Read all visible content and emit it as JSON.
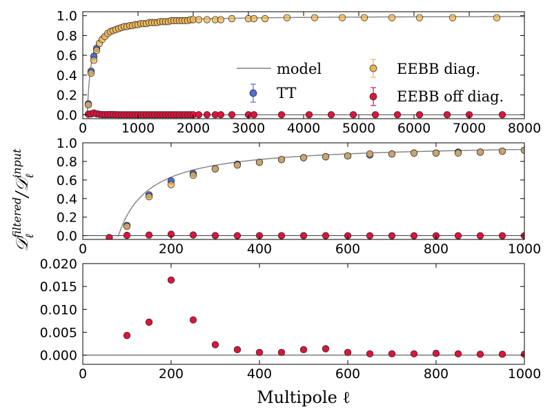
{
  "chart_data": {
    "type": "scatter",
    "xlabel": "Multipole ℓ",
    "ylabel": "Dℓ filtered / Dℓ input",
    "ylabel_main": "𝒟",
    "ylabel_sub": "ℓ",
    "ylabel_sup_num": "filtered",
    "ylabel_sup_den": "input",
    "ylabel_slash": "/",
    "colors": {
      "TT": "#4d6fd1",
      "EEBB_diag": "#f0b550",
      "EEBB_off": "#dc143c",
      "model": "#808080"
    },
    "legend": {
      "model": "model",
      "TT": "TT",
      "EEBB_diag": "EEBB diag.",
      "EEBB_off": "EEBB off diag.",
      "location": "center-right"
    },
    "panels": [
      {
        "name": "top",
        "xlim": [
          0,
          8000
        ],
        "ylim": [
          -0.04,
          1.04
        ],
        "xticks": [
          "0",
          "1000",
          "2000",
          "3000",
          "4000",
          "5000",
          "6000",
          "7000",
          "8000"
        ],
        "yticks": [
          "0.0",
          "0.2",
          "0.4",
          "0.6",
          "0.8",
          "1.0"
        ],
        "xtick_values": [
          0,
          1000,
          2000,
          3000,
          4000,
          5000,
          6000,
          7000,
          8000
        ],
        "ytick_values": [
          0,
          0.2,
          0.4,
          0.6,
          0.8,
          1.0
        ],
        "model": {
          "l0": 80,
          "a": 70,
          "xmax": 8000
        },
        "ref_line": 0,
        "TT": [
          [
            100,
            0.11
          ],
          [
            150,
            0.44
          ],
          [
            200,
            0.59
          ],
          [
            250,
            0.67
          ]
        ],
        "EEBB_diag": [
          [
            100,
            0.1
          ],
          [
            150,
            0.42
          ],
          [
            200,
            0.55
          ],
          [
            250,
            0.65
          ],
          [
            300,
            0.72
          ],
          [
            350,
            0.76
          ],
          [
            400,
            0.79
          ],
          [
            450,
            0.82
          ],
          [
            500,
            0.84
          ],
          [
            550,
            0.85
          ],
          [
            600,
            0.86
          ],
          [
            650,
            0.87
          ],
          [
            700,
            0.88
          ],
          [
            750,
            0.89
          ],
          [
            800,
            0.89
          ],
          [
            850,
            0.9
          ],
          [
            900,
            0.9
          ],
          [
            950,
            0.91
          ],
          [
            1000,
            0.91
          ],
          [
            1050,
            0.92
          ],
          [
            1100,
            0.92
          ],
          [
            1150,
            0.92
          ],
          [
            1200,
            0.93
          ],
          [
            1250,
            0.93
          ],
          [
            1300,
            0.93
          ],
          [
            1350,
            0.93
          ],
          [
            1400,
            0.94
          ],
          [
            1450,
            0.94
          ],
          [
            1500,
            0.94
          ],
          [
            1550,
            0.94
          ],
          [
            1600,
            0.95
          ],
          [
            1650,
            0.95
          ],
          [
            1700,
            0.95
          ],
          [
            1750,
            0.95
          ],
          [
            1800,
            0.95
          ],
          [
            1850,
            0.95
          ],
          [
            1900,
            0.95
          ],
          [
            1950,
            0.96
          ],
          [
            2000,
            0.96
          ],
          [
            2100,
            0.96
          ],
          [
            2250,
            0.96
          ],
          [
            2400,
            0.96
          ],
          [
            2500,
            0.96
          ],
          [
            2700,
            0.97
          ],
          [
            3000,
            0.97
          ],
          [
            3100,
            0.97
          ],
          [
            3300,
            0.97
          ],
          [
            3700,
            0.98
          ],
          [
            4200,
            0.98
          ],
          [
            4700,
            0.98
          ],
          [
            5100,
            0.98
          ],
          [
            5600,
            0.98
          ],
          [
            6100,
            0.98
          ],
          [
            6700,
            0.98
          ],
          [
            7500,
            0.98
          ]
        ],
        "EEBB_off": [
          [
            100,
            0.005
          ],
          [
            150,
            0.008
          ],
          [
            200,
            0.017
          ],
          [
            250,
            0.009
          ],
          [
            300,
            0.004
          ],
          [
            350,
            0.002
          ],
          [
            400,
            0.001
          ],
          [
            450,
            0.002
          ],
          [
            500,
            0.002
          ],
          [
            550,
            0.002
          ],
          [
            600,
            0.001
          ],
          [
            650,
            0.0
          ],
          [
            700,
            0.0
          ],
          [
            750,
            0.0
          ],
          [
            800,
            0.0
          ],
          [
            850,
            0.0
          ],
          [
            900,
            0.0
          ],
          [
            950,
            0.0
          ],
          [
            1000,
            0.0
          ],
          [
            1050,
            0.0
          ],
          [
            1100,
            0.0
          ],
          [
            1150,
            0.0
          ],
          [
            1200,
            0.0
          ],
          [
            1250,
            0.0
          ],
          [
            1300,
            0.0
          ],
          [
            1350,
            0.0
          ],
          [
            1400,
            0.0
          ],
          [
            1450,
            0.0
          ],
          [
            1500,
            0.0
          ],
          [
            1550,
            0.0
          ],
          [
            1600,
            0.0
          ],
          [
            1650,
            0.0
          ],
          [
            1700,
            0.0
          ],
          [
            1750,
            0.0
          ],
          [
            1800,
            0.0
          ],
          [
            1850,
            0.0
          ],
          [
            1900,
            0.0
          ],
          [
            1950,
            0.0
          ],
          [
            2000,
            0.0
          ],
          [
            2100,
            0.0
          ],
          [
            2250,
            0.0
          ],
          [
            2400,
            0.0
          ],
          [
            2500,
            0.0
          ],
          [
            2700,
            0.0
          ],
          [
            3000,
            0.0
          ],
          [
            3100,
            0.0
          ],
          [
            3600,
            0.0
          ],
          [
            4100,
            0.0
          ],
          [
            4500,
            0.0
          ],
          [
            4900,
            0.0
          ],
          [
            5300,
            0.0
          ],
          [
            5700,
            0.0
          ],
          [
            6100,
            0.0
          ],
          [
            6600,
            0.0
          ],
          [
            7000,
            0.0
          ],
          [
            7600,
            0.0
          ]
        ]
      },
      {
        "name": "middle",
        "xlim": [
          0,
          1000
        ],
        "ylim": [
          -0.04,
          1.0
        ],
        "xticks": [
          "0",
          "200",
          "400",
          "600",
          "800",
          "1000"
        ],
        "yticks": [
          "0.0",
          "0.2",
          "0.4",
          "0.6",
          "0.8",
          "1.0"
        ],
        "xtick_values": [
          0,
          200,
          400,
          600,
          800,
          1000
        ],
        "ytick_values": [
          0,
          0.2,
          0.4,
          0.6,
          0.8,
          1.0
        ],
        "model": {
          "l0": 80,
          "a": 70,
          "xmax": 1000
        },
        "ref_line": 0,
        "TT": [
          [
            100,
            0.11
          ],
          [
            150,
            0.44
          ],
          [
            200,
            0.59
          ],
          [
            250,
            0.67
          ],
          [
            300,
            0.72
          ],
          [
            350,
            0.77
          ],
          [
            400,
            0.79
          ],
          [
            450,
            0.82
          ],
          [
            500,
            0.84
          ],
          [
            550,
            0.85
          ],
          [
            600,
            0.86
          ],
          [
            650,
            0.87
          ],
          [
            700,
            0.88
          ],
          [
            750,
            0.89
          ],
          [
            800,
            0.89
          ],
          [
            850,
            0.9
          ],
          [
            900,
            0.9
          ],
          [
            950,
            0.91
          ],
          [
            1000,
            0.92
          ]
        ],
        "EEBB_diag": [
          [
            100,
            0.1
          ],
          [
            150,
            0.42
          ],
          [
            200,
            0.55
          ],
          [
            250,
            0.65
          ],
          [
            300,
            0.72
          ],
          [
            350,
            0.76
          ],
          [
            400,
            0.79
          ],
          [
            450,
            0.82
          ],
          [
            500,
            0.84
          ],
          [
            550,
            0.85
          ],
          [
            600,
            0.86
          ],
          [
            650,
            0.88
          ],
          [
            700,
            0.88
          ],
          [
            750,
            0.89
          ],
          [
            800,
            0.89
          ],
          [
            850,
            0.89
          ],
          [
            900,
            0.9
          ],
          [
            950,
            0.91
          ],
          [
            1000,
            0.92
          ]
        ],
        "EEBB_off": [
          [
            60,
            -0.02
          ],
          [
            100,
            0.004
          ],
          [
            150,
            0.007
          ],
          [
            200,
            0.016
          ],
          [
            250,
            0.008
          ],
          [
            300,
            0.002
          ],
          [
            350,
            0.001
          ],
          [
            400,
            0.001
          ],
          [
            450,
            0.001
          ],
          [
            500,
            0.001
          ],
          [
            550,
            0.001
          ],
          [
            600,
            0.0
          ],
          [
            650,
            0.0
          ],
          [
            700,
            0.0
          ],
          [
            750,
            0.0
          ],
          [
            800,
            0.0
          ],
          [
            850,
            0.0
          ],
          [
            900,
            0.0
          ],
          [
            950,
            0.0
          ],
          [
            1000,
            0.0
          ]
        ]
      },
      {
        "name": "bottom",
        "xlim": [
          0,
          1000
        ],
        "ylim": [
          -0.002,
          0.02
        ],
        "xticks": [
          "0",
          "200",
          "400",
          "600",
          "800",
          "1000"
        ],
        "yticks": [
          "0.000",
          "0.005",
          "0.010",
          "0.015",
          "0.020"
        ],
        "xtick_values": [
          0,
          200,
          400,
          600,
          800,
          1000
        ],
        "ytick_values": [
          0,
          0.005,
          0.01,
          0.015,
          0.02
        ],
        "ref_line": 0,
        "EEBB_off": [
          [
            100,
            0.0043
          ],
          [
            150,
            0.0072
          ],
          [
            200,
            0.0164
          ],
          [
            250,
            0.0077
          ],
          [
            300,
            0.0023
          ],
          [
            350,
            0.0012
          ],
          [
            400,
            0.0006
          ],
          [
            450,
            0.0006
          ],
          [
            500,
            0.0012
          ],
          [
            550,
            0.0014
          ],
          [
            600,
            0.0006
          ],
          [
            650,
            0.0003
          ],
          [
            700,
            0.0003
          ],
          [
            750,
            0.0003
          ],
          [
            800,
            0.0004
          ],
          [
            850,
            0.0003
          ],
          [
            900,
            0.0002
          ],
          [
            950,
            0.0002
          ],
          [
            1000,
            0.0002
          ]
        ]
      }
    ]
  }
}
